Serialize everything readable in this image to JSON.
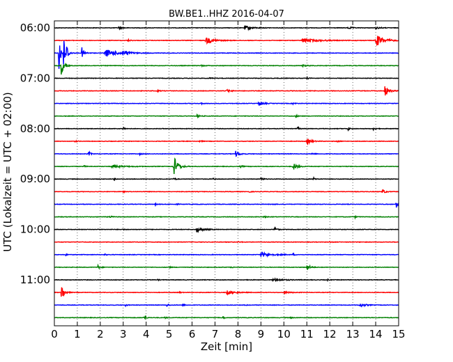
{
  "chart_data": {
    "type": "line",
    "title": "BW.BE1..HHZ 2016-04-07",
    "xlabel": "Zeit  [min]",
    "ylabel": "UTC (Lokalzeit = UTC + 02:00)",
    "xlim": [
      0,
      15
    ],
    "x_ticks": [
      0,
      1,
      2,
      3,
      4,
      5,
      6,
      7,
      8,
      9,
      10,
      11,
      12,
      13,
      14,
      15
    ],
    "x_tick_labels": [
      "0",
      "1",
      "2",
      "3",
      "4",
      "5",
      "6",
      "7",
      "8",
      "9",
      "10",
      "11",
      "12",
      "13",
      "14",
      "15"
    ],
    "y_tick_labels": [
      "06:00",
      "07:00",
      "08:00",
      "09:00",
      "10:00",
      "11:00"
    ],
    "grid": "vertical dotted",
    "trace_interval_minutes": 15,
    "trace_color_cycle": [
      "#000000",
      "#ff0000",
      "#0000ff",
      "#008000"
    ],
    "series": [
      {
        "start": "06:00",
        "color": "#000000",
        "events": [
          [
            8.3,
            0.35,
            0.25
          ],
          [
            2.8,
            0.2,
            0.12
          ],
          [
            12.8,
            0.22,
            0.12
          ],
          [
            14.0,
            0.15,
            0.2
          ]
        ]
      },
      {
        "start": "06:15",
        "color": "#ff0000",
        "events": [
          [
            6.6,
            0.55,
            0.3
          ],
          [
            10.8,
            0.35,
            0.6
          ],
          [
            14.0,
            1.0,
            0.3
          ],
          [
            3.2,
            0.15,
            0.12
          ]
        ]
      },
      {
        "start": "06:30",
        "color": "#0000ff",
        "events": [
          [
            0.2,
            3.0,
            0.08
          ],
          [
            0.4,
            2.5,
            0.06
          ],
          [
            0.5,
            1.8,
            0.08
          ],
          [
            1.2,
            0.9,
            0.1
          ],
          [
            2.2,
            0.6,
            0.5
          ],
          [
            3.0,
            0.4,
            0.2
          ]
        ]
      },
      {
        "start": "06:45",
        "color": "#008000",
        "events": [
          [
            0.3,
            1.5,
            0.1
          ],
          [
            6.4,
            0.12,
            0.1
          ],
          [
            10.8,
            0.12,
            0.2
          ]
        ]
      },
      {
        "start": "07:00",
        "color": "#000000",
        "events": [
          [
            6.7,
            0.12,
            0.1
          ],
          [
            11.0,
            0.12,
            0.1
          ]
        ]
      },
      {
        "start": "07:15",
        "color": "#ff0000",
        "events": [
          [
            14.4,
            0.9,
            0.15
          ],
          [
            7.5,
            0.22,
            0.15
          ],
          [
            4.5,
            0.12,
            0.1
          ]
        ]
      },
      {
        "start": "07:30",
        "color": "#0000ff",
        "events": [
          [
            8.9,
            0.45,
            0.15
          ],
          [
            6.4,
            0.12,
            0.1
          ],
          [
            10.4,
            0.1,
            0.1
          ]
        ]
      },
      {
        "start": "07:45",
        "color": "#008000",
        "events": [
          [
            6.2,
            0.25,
            0.1
          ],
          [
            10.5,
            0.2,
            0.1
          ]
        ]
      },
      {
        "start": "08:00",
        "color": "#000000",
        "events": [
          [
            3.0,
            0.3,
            0.06
          ],
          [
            10.6,
            0.3,
            0.06
          ],
          [
            12.8,
            0.3,
            0.06
          ],
          [
            13.9,
            0.22,
            0.08
          ]
        ]
      },
      {
        "start": "08:15",
        "color": "#ff0000",
        "events": [
          [
            11.0,
            0.5,
            0.15
          ],
          [
            0.9,
            0.15,
            0.08
          ],
          [
            6.3,
            0.12,
            0.1
          ],
          [
            12.3,
            0.12,
            0.1
          ]
        ]
      },
      {
        "start": "08:30",
        "color": "#0000ff",
        "events": [
          [
            1.5,
            0.35,
            0.08
          ],
          [
            7.9,
            0.45,
            0.15
          ],
          [
            3.7,
            0.15,
            0.1
          ],
          [
            11.2,
            0.12,
            0.1
          ]
        ]
      },
      {
        "start": "08:45",
        "color": "#008000",
        "events": [
          [
            5.2,
            1.8,
            0.15
          ],
          [
            10.4,
            0.6,
            0.15
          ],
          [
            2.5,
            0.2,
            0.5
          ],
          [
            1.3,
            0.2,
            0.05
          ],
          [
            8.1,
            0.15,
            0.1
          ]
        ]
      },
      {
        "start": "09:00",
        "color": "#000000",
        "events": [
          [
            5.2,
            0.2,
            0.08
          ],
          [
            9.0,
            0.3,
            0.08
          ],
          [
            11.3,
            0.25,
            0.08
          ],
          [
            2.6,
            0.15,
            0.06
          ],
          [
            6.9,
            0.15,
            0.06
          ]
        ]
      },
      {
        "start": "09:15",
        "color": "#ff0000",
        "events": [
          [
            14.3,
            0.4,
            0.1
          ],
          [
            3.0,
            0.15,
            0.06
          ],
          [
            8.5,
            0.12,
            0.06
          ]
        ]
      },
      {
        "start": "09:30",
        "color": "#0000ff",
        "events": [
          [
            14.9,
            0.6,
            0.08
          ],
          [
            5.3,
            0.15,
            0.06
          ],
          [
            4.4,
            0.12,
            0.06
          ],
          [
            9.5,
            0.12,
            0.06
          ]
        ]
      },
      {
        "start": "09:45",
        "color": "#008000",
        "events": [
          [
            2.4,
            0.2,
            0.08
          ],
          [
            9.1,
            0.18,
            0.08
          ],
          [
            13.1,
            0.15,
            0.06
          ]
        ]
      },
      {
        "start": "10:00",
        "color": "#000000",
        "events": [
          [
            6.2,
            0.4,
            0.25
          ],
          [
            9.6,
            0.4,
            0.08
          ],
          [
            3.0,
            0.12,
            0.06
          ]
        ]
      },
      {
        "start": "10:15",
        "color": "#ff0000",
        "events": [
          [
            8.0,
            0.1,
            0.1
          ],
          [
            12.0,
            0.1,
            0.1
          ]
        ]
      },
      {
        "start": "10:30",
        "color": "#0000ff",
        "events": [
          [
            9.0,
            0.4,
            0.4
          ],
          [
            0.5,
            0.2,
            0.06
          ],
          [
            2.2,
            0.15,
            0.06
          ],
          [
            10.4,
            0.15,
            0.06
          ]
        ]
      },
      {
        "start": "10:45",
        "color": "#008000",
        "events": [
          [
            11.0,
            0.55,
            0.12
          ],
          [
            1.9,
            0.3,
            0.08
          ],
          [
            5.0,
            0.15,
            0.06
          ],
          [
            7.7,
            0.15,
            0.06
          ]
        ]
      },
      {
        "start": "11:00",
        "color": "#000000",
        "events": [
          [
            9.5,
            0.22,
            0.4
          ],
          [
            4.5,
            0.12,
            0.06
          ],
          [
            11.9,
            0.12,
            0.06
          ]
        ]
      },
      {
        "start": "11:15",
        "color": "#ff0000",
        "events": [
          [
            0.3,
            1.5,
            0.1
          ],
          [
            7.5,
            0.35,
            0.3
          ],
          [
            10.0,
            0.2,
            0.2
          ],
          [
            5.4,
            0.12,
            0.08
          ]
        ]
      },
      {
        "start": "11:30",
        "color": "#0000ff",
        "events": [
          [
            13.3,
            0.3,
            0.2
          ],
          [
            4.9,
            0.3,
            0.06
          ],
          [
            5.6,
            0.25,
            0.06
          ],
          [
            3.1,
            0.15,
            0.06
          ],
          [
            8.3,
            0.15,
            0.06
          ]
        ]
      },
      {
        "start": "11:45",
        "color": "#008000",
        "events": [
          [
            3.9,
            0.6,
            0.06
          ],
          [
            7.3,
            0.45,
            0.06
          ],
          [
            4.8,
            0.15,
            0.06
          ],
          [
            10.3,
            0.15,
            0.06
          ]
        ]
      }
    ]
  }
}
